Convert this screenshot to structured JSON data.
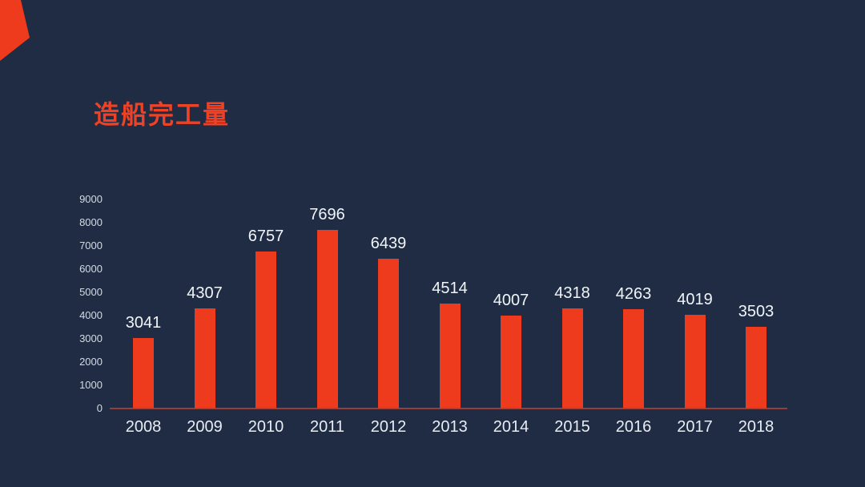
{
  "page": {
    "background": "#1f2c43"
  },
  "decoration": {
    "corner_color": "#ee3b1d"
  },
  "chart_data": {
    "type": "bar",
    "title": "造船完工量",
    "title_color": "#ee4226",
    "categories": [
      "2008",
      "2009",
      "2010",
      "2011",
      "2012",
      "2013",
      "2014",
      "2015",
      "2016",
      "2017",
      "2018"
    ],
    "values": [
      3041,
      4307,
      6757,
      7696,
      6439,
      4514,
      4007,
      4318,
      4263,
      4019,
      3503
    ],
    "yticks": [
      0,
      1000,
      2000,
      3000,
      4000,
      5000,
      6000,
      7000,
      8000,
      9000
    ],
    "ylim": [
      0,
      9000
    ],
    "ytick_step": 1000,
    "xlabel": "",
    "ylabel": "",
    "grid": false,
    "legend": "none",
    "bar_color": "#ee3b1d",
    "value_label_color": "#f1f5f9",
    "x_tick_color": "#e8edf4",
    "y_tick_color": "#d3dce6",
    "axis_line_color": "#a8443c"
  }
}
